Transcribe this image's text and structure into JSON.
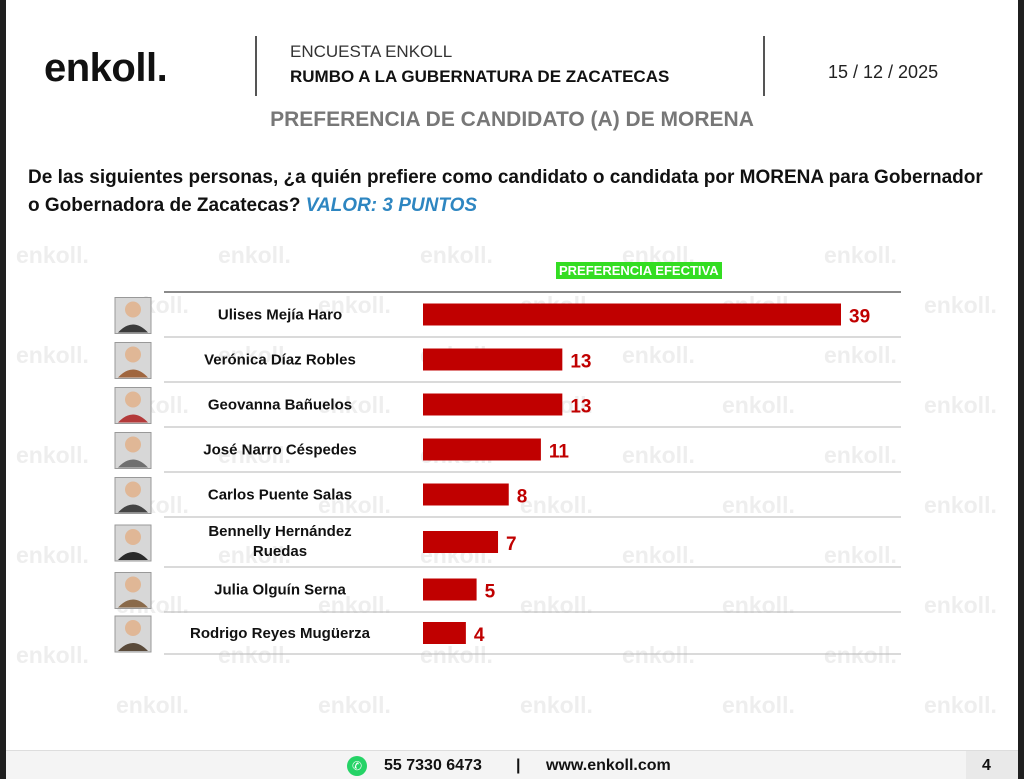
{
  "header": {
    "logo": "enkoll.",
    "line1": "ENCUESTA ENKOLL",
    "line2": "RUMBO A LA GUBERNATURA DE ZACATECAS",
    "date": "15 / 12 / 2025"
  },
  "section_title": "PREFERENCIA DE CANDIDATO (A) DE MORENA",
  "question": {
    "text": "De las siguientes personas, ¿a quién prefiere como candidato o candidata por MORENA para Gobernador o Gobernadora de Zacatecas?",
    "highlight": "VALOR: 3 PUNTOS"
  },
  "watermark": "enkoll.",
  "chart_data": {
    "type": "bar",
    "orientation": "horizontal",
    "legend_tag": "PREFERENCIA EFECTIVA",
    "categories": [
      [
        "Ulises Mejía Haro"
      ],
      [
        "Verónica Díaz Robles"
      ],
      [
        "Geovanna Bañuelos"
      ],
      [
        "José Narro Céspedes"
      ],
      [
        "Carlos Puente Salas"
      ],
      [
        "Bennelly Hernández",
        "Ruedas"
      ],
      [
        "Julia Olguín Serna"
      ],
      [
        "Rodrigo Reyes Mugüerza"
      ]
    ],
    "values": [
      39,
      13,
      13,
      11,
      8,
      7,
      5,
      4
    ],
    "bar_color": "#c00000",
    "label_color": "#c00000",
    "xlim": [
      0,
      39
    ],
    "grid": false
  },
  "footer": {
    "phone": "55 7330 6473",
    "separator": "|",
    "website": "www.enkoll.com",
    "page": "4"
  },
  "colors": {
    "bar": "#c00000",
    "legend": "#33dd22",
    "accent": "#2e86c1"
  }
}
